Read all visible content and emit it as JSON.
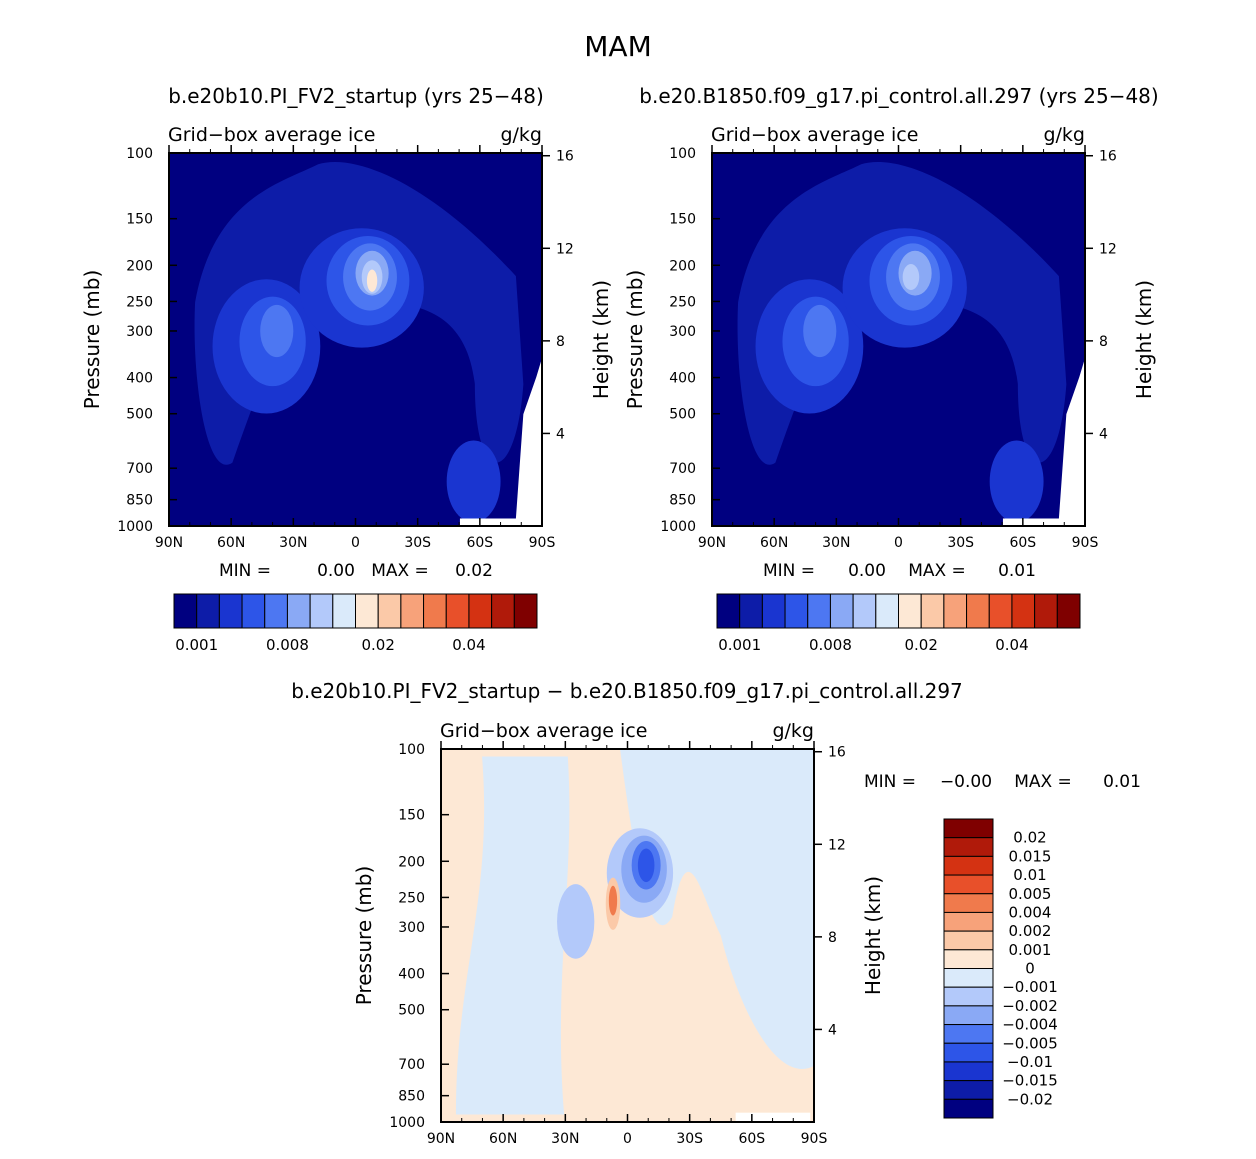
{
  "figure": {
    "title": "MAM"
  },
  "chart_data": [
    {
      "type": "heatmap",
      "case_title": "b.e20b10.PI_FV2_startup (yrs 25−48)",
      "title": "Grid−box average ice",
      "units": "g/kg",
      "ylabel": "Pressure (mb)",
      "y2label": "Height (km)",
      "xticks": [
        "90N",
        "60N",
        "30N",
        "0",
        "30S",
        "60S",
        "90S"
      ],
      "yticks": [
        "100",
        "150",
        "200",
        "250",
        "300",
        "400",
        "500",
        "700",
        "850",
        "1000"
      ],
      "y2ticks": [
        "16",
        "12",
        "8",
        "4"
      ],
      "x_range": [
        90,
        -90
      ],
      "y_range": [
        1000,
        100
      ],
      "y_scale": "log",
      "min_label": "MIN =",
      "min_value": "0.00",
      "max_label": "MAX =",
      "max_value": "0.02",
      "colorbar": {
        "orientation": "horizontal",
        "colors": [
          "#000080",
          "#0d1ca8",
          "#1a35d0",
          "#2d55e8",
          "#4d77f2",
          "#8aa9f5",
          "#b3c9fa",
          "#daeafa",
          "#fde8d5",
          "#fbc9a8",
          "#f7a27a",
          "#f07a4c",
          "#e8502a",
          "#d43212",
          "#b01a0a",
          "#7f0000"
        ],
        "labels": [
          "0.001",
          "0.008",
          "0.02",
          "0.04"
        ]
      }
    },
    {
      "type": "heatmap",
      "case_title": "b.e20.B1850.f09_g17.pi_control.all.297 (yrs 25−48)",
      "title": "Grid−box average ice",
      "units": "g/kg",
      "ylabel": "Pressure (mb)",
      "y2label": "Height (km)",
      "xticks": [
        "90N",
        "60N",
        "30N",
        "0",
        "30S",
        "60S",
        "90S"
      ],
      "yticks": [
        "100",
        "150",
        "200",
        "250",
        "300",
        "400",
        "500",
        "700",
        "850",
        "1000"
      ],
      "y2ticks": [
        "16",
        "12",
        "8",
        "4"
      ],
      "x_range": [
        90,
        -90
      ],
      "y_range": [
        1000,
        100
      ],
      "y_scale": "log",
      "min_label": "MIN =",
      "min_value": "0.00",
      "max_label": "MAX =",
      "max_value": "0.01",
      "colorbar": {
        "orientation": "horizontal",
        "colors": [
          "#000080",
          "#0d1ca8",
          "#1a35d0",
          "#2d55e8",
          "#4d77f2",
          "#8aa9f5",
          "#b3c9fa",
          "#daeafa",
          "#fde8d5",
          "#fbc9a8",
          "#f7a27a",
          "#f07a4c",
          "#e8502a",
          "#d43212",
          "#b01a0a",
          "#7f0000"
        ],
        "labels": [
          "0.001",
          "0.008",
          "0.02",
          "0.04"
        ]
      }
    },
    {
      "type": "heatmap",
      "case_title": "b.e20b10.PI_FV2_startup − b.e20.B1850.f09_g17.pi_control.all.297",
      "title": "Grid−box average ice",
      "units": "g/kg",
      "ylabel": "Pressure (mb)",
      "y2label": "Height (km)",
      "xticks": [
        "90N",
        "60N",
        "30N",
        "0",
        "30S",
        "60S",
        "90S"
      ],
      "yticks": [
        "100",
        "150",
        "200",
        "250",
        "300",
        "400",
        "500",
        "700",
        "850",
        "1000"
      ],
      "y2ticks": [
        "16",
        "12",
        "8",
        "4"
      ],
      "x_range": [
        90,
        -90
      ],
      "y_range": [
        1000,
        100
      ],
      "y_scale": "log",
      "min_label": "MIN =",
      "min_value": "−0.00",
      "max_label": "MAX =",
      "max_value": "0.01",
      "colorbar": {
        "orientation": "vertical",
        "colors": [
          "#7f0000",
          "#b01a0a",
          "#d43212",
          "#e8502a",
          "#f07a4c",
          "#f7a27a",
          "#fbc9a8",
          "#fde8d5",
          "#daeafa",
          "#b3c9fa",
          "#8aa9f5",
          "#4d77f2",
          "#2d55e8",
          "#1a35d0",
          "#0d1ca8",
          "#000080"
        ],
        "labels": [
          "0.02",
          "0.015",
          "0.01",
          "0.005",
          "0.004",
          "0.002",
          "0.001",
          "0",
          "−0.001",
          "−0.002",
          "−0.004",
          "−0.005",
          "−0.01",
          "−0.015",
          "−0.02"
        ]
      }
    }
  ]
}
